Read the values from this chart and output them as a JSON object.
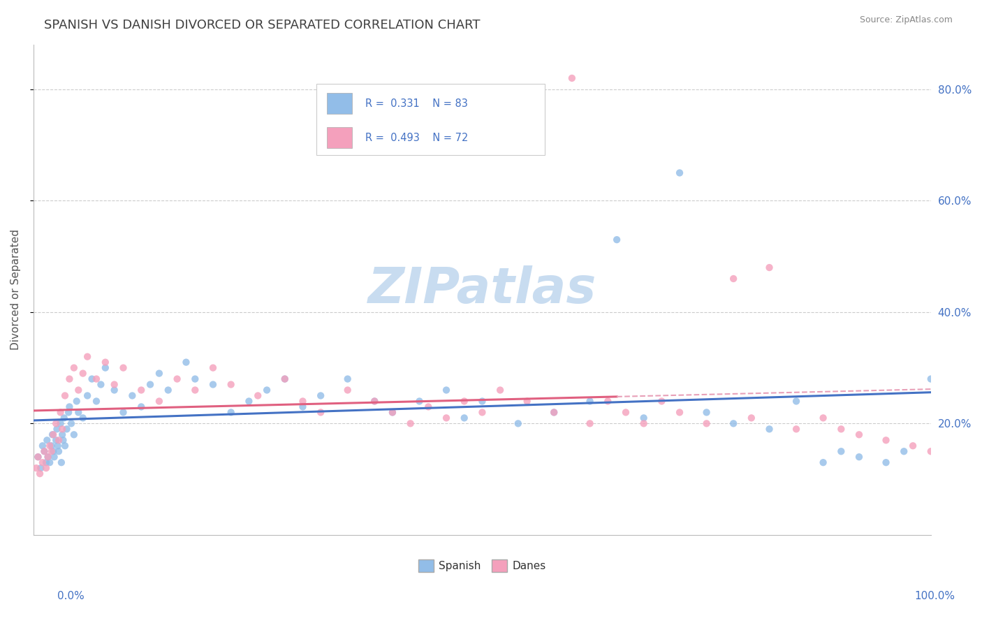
{
  "title": "SPANISH VS DANISH DIVORCED OR SEPARATED CORRELATION CHART",
  "source": "Source: ZipAtlas.com",
  "ylabel": "Divorced or Separated",
  "blue_color": "#92BDE8",
  "pink_color": "#F4A0BC",
  "blue_line_color": "#4472C4",
  "pink_line_color": "#E06080",
  "pink_dash_color": "#E8A0B8",
  "right_tick_color": "#4472C4",
  "grid_color": "#CCCCCC",
  "background_color": "#FFFFFF",
  "title_color": "#404040",
  "source_color": "#888888",
  "ylabel_color": "#555555",
  "bottom_label_color": "#4472C4",
  "watermark_color": "#C8DCF0",
  "legend_r1": "R =  0.331",
  "legend_n1": "N = 83",
  "legend_r2": "R =  0.493",
  "legend_n2": "N = 72",
  "sp_x": [
    0.5,
    0.8,
    1.0,
    1.2,
    1.4,
    1.5,
    1.6,
    1.8,
    2.0,
    2.1,
    2.2,
    2.3,
    2.5,
    2.6,
    2.7,
    2.8,
    3.0,
    3.1,
    3.2,
    3.3,
    3.4,
    3.5,
    3.7,
    3.9,
    4.0,
    4.2,
    4.5,
    4.8,
    5.0,
    5.5,
    6.0,
    6.5,
    7.0,
    7.5,
    8.0,
    9.0,
    10.0,
    11.0,
    12.0,
    13.0,
    14.0,
    15.0,
    17.0,
    18.0,
    20.0,
    22.0,
    24.0,
    26.0,
    28.0,
    30.0,
    32.0,
    35.0,
    38.0,
    40.0,
    43.0,
    46.0,
    48.0,
    50.0,
    54.0,
    58.0,
    62.0,
    65.0,
    68.0,
    72.0,
    75.0,
    78.0,
    82.0,
    85.0,
    88.0,
    90.0,
    92.0,
    95.0,
    97.0,
    100.0
  ],
  "sp_y": [
    0.14,
    0.12,
    0.16,
    0.15,
    0.13,
    0.17,
    0.14,
    0.13,
    0.16,
    0.18,
    0.15,
    0.14,
    0.17,
    0.19,
    0.16,
    0.15,
    0.2,
    0.13,
    0.18,
    0.17,
    0.21,
    0.16,
    0.19,
    0.22,
    0.23,
    0.2,
    0.18,
    0.24,
    0.22,
    0.21,
    0.25,
    0.28,
    0.24,
    0.27,
    0.3,
    0.26,
    0.22,
    0.25,
    0.23,
    0.27,
    0.29,
    0.26,
    0.31,
    0.28,
    0.27,
    0.22,
    0.24,
    0.26,
    0.28,
    0.23,
    0.25,
    0.28,
    0.24,
    0.22,
    0.24,
    0.26,
    0.21,
    0.24,
    0.2,
    0.22,
    0.24,
    0.53,
    0.21,
    0.65,
    0.22,
    0.2,
    0.19,
    0.24,
    0.13,
    0.15,
    0.14,
    0.13,
    0.15,
    0.28
  ],
  "da_x": [
    0.3,
    0.5,
    0.7,
    1.0,
    1.2,
    1.4,
    1.6,
    1.8,
    2.0,
    2.2,
    2.5,
    2.8,
    3.0,
    3.2,
    3.5,
    4.0,
    4.5,
    5.0,
    5.5,
    6.0,
    7.0,
    8.0,
    9.0,
    10.0,
    12.0,
    14.0,
    16.0,
    18.0,
    20.0,
    22.0,
    25.0,
    28.0,
    30.0,
    32.0,
    35.0,
    38.0,
    40.0,
    42.0,
    44.0,
    46.0,
    48.0,
    50.0,
    52.0,
    55.0,
    58.0,
    60.0,
    62.0,
    64.0,
    66.0,
    68.0,
    70.0,
    72.0,
    75.0,
    78.0,
    80.0,
    82.0,
    85.0,
    88.0,
    90.0,
    92.0,
    95.0,
    98.0,
    100.0
  ],
  "da_y": [
    0.12,
    0.14,
    0.11,
    0.13,
    0.15,
    0.12,
    0.14,
    0.16,
    0.15,
    0.18,
    0.2,
    0.17,
    0.22,
    0.19,
    0.25,
    0.28,
    0.3,
    0.26,
    0.29,
    0.32,
    0.28,
    0.31,
    0.27,
    0.3,
    0.26,
    0.24,
    0.28,
    0.26,
    0.3,
    0.27,
    0.25,
    0.28,
    0.24,
    0.22,
    0.26,
    0.24,
    0.22,
    0.2,
    0.23,
    0.21,
    0.24,
    0.22,
    0.26,
    0.24,
    0.22,
    0.82,
    0.2,
    0.24,
    0.22,
    0.2,
    0.24,
    0.22,
    0.2,
    0.46,
    0.21,
    0.48,
    0.19,
    0.21,
    0.19,
    0.18,
    0.17,
    0.16,
    0.15
  ],
  "xlim": [
    0.0,
    1.0
  ],
  "ylim": [
    0.0,
    0.88
  ],
  "yticks": [
    0.2,
    0.4,
    0.6,
    0.8
  ],
  "ytick_labels": [
    "20.0%",
    "40.0%",
    "60.0%",
    "80.0%"
  ]
}
